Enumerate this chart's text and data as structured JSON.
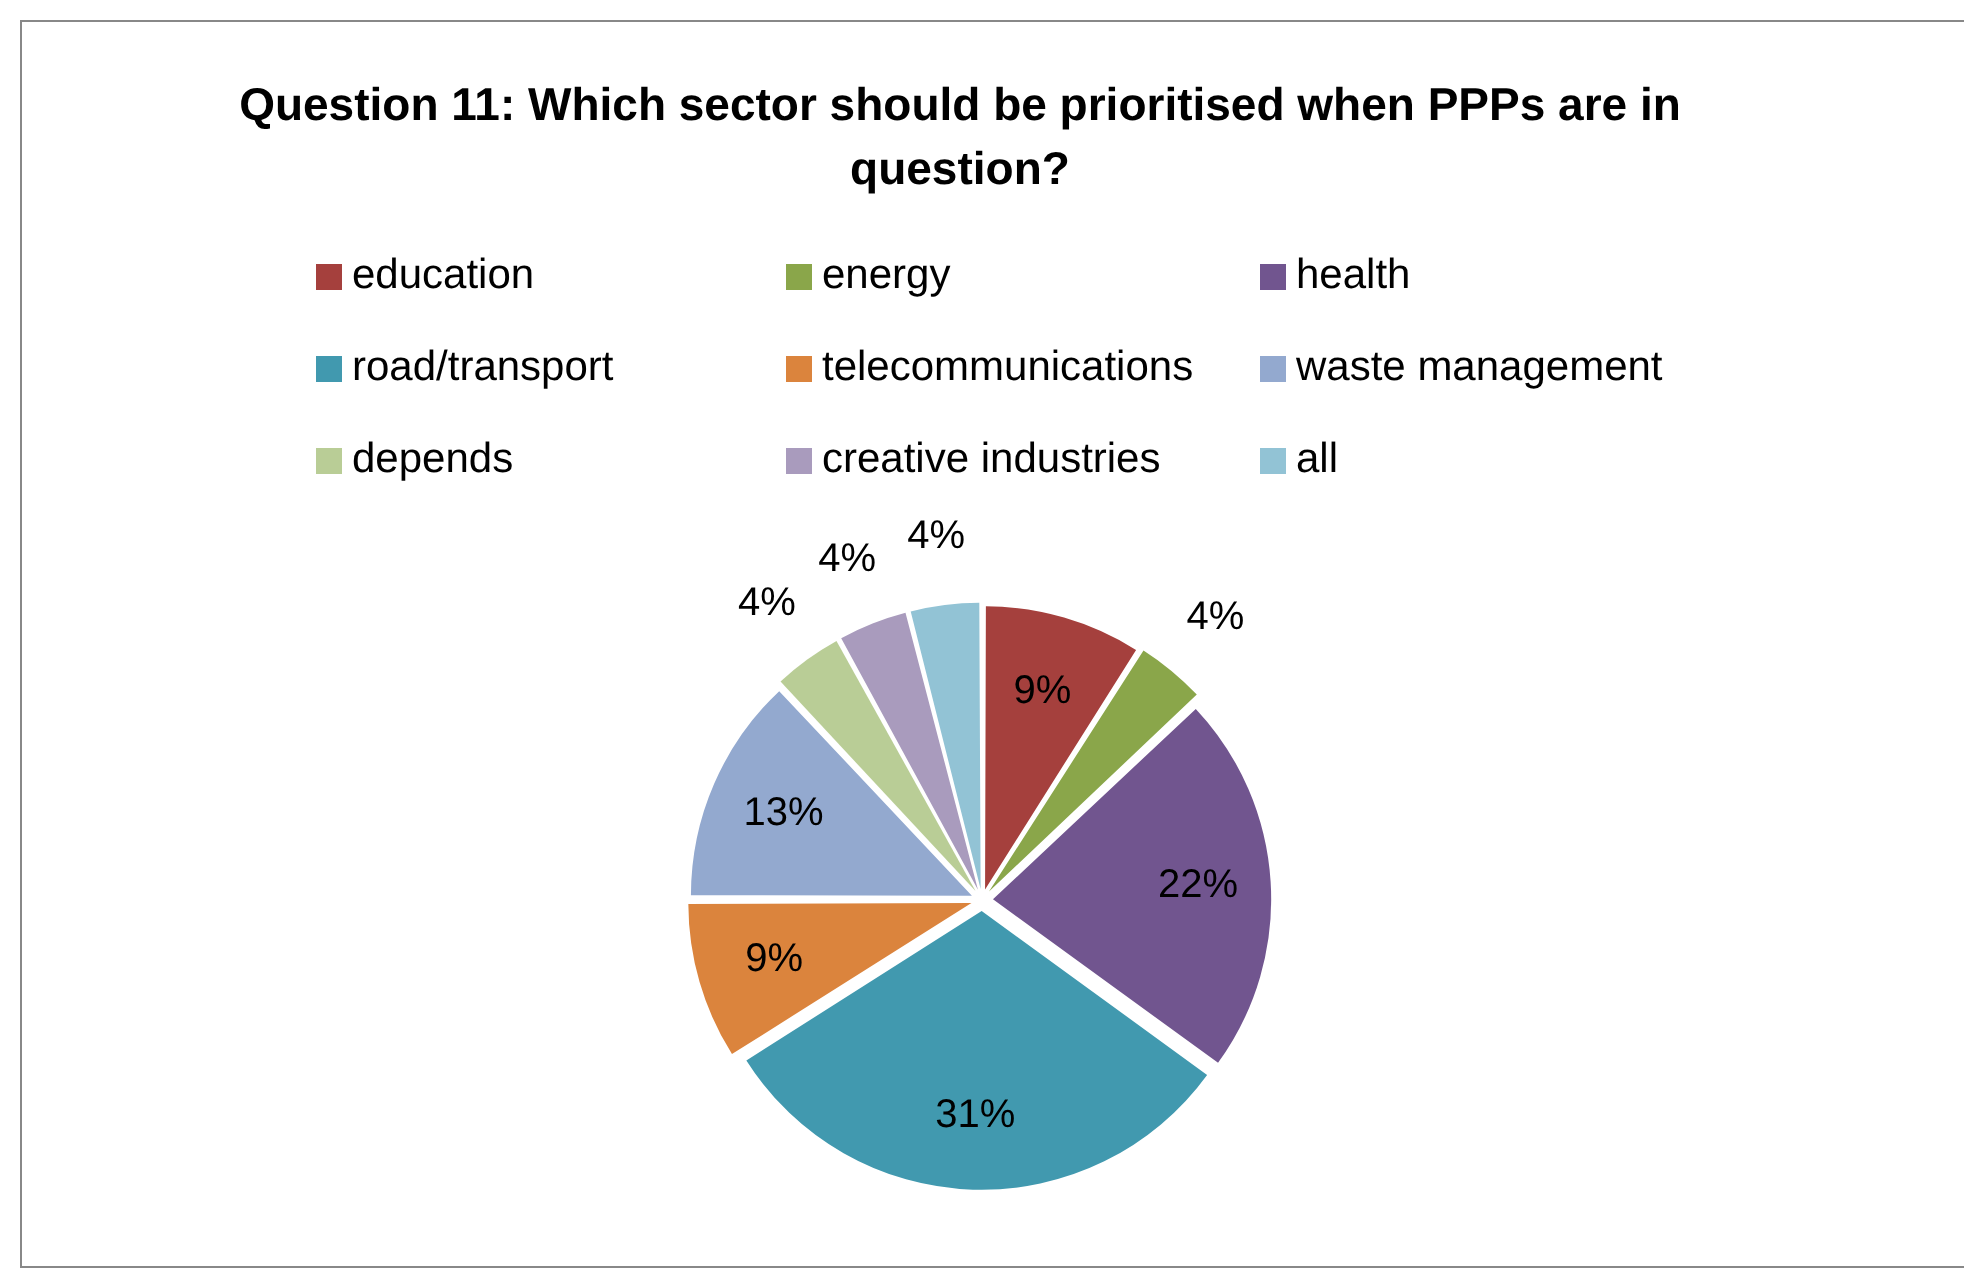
{
  "chart_data": {
    "type": "pie",
    "title": "Question 11: Which sector should be prioritised when PPPs are in question?",
    "categories": [
      "education",
      "energy",
      "health",
      "road/transport",
      "telecommunications",
      "waste management",
      "depends",
      "creative industries",
      "all"
    ],
    "values": [
      9,
      4,
      22,
      31,
      9,
      13,
      4,
      4,
      4
    ],
    "value_labels": [
      "9%",
      "4%",
      "22%",
      "31%",
      "9%",
      "13%",
      "4%",
      "4%",
      "4%"
    ],
    "colors": [
      "#a5403d",
      "#8aa64a",
      "#71558f",
      "#4199af",
      "#db843d",
      "#93a9cf",
      "#b9cd96",
      "#a99bbd",
      "#92c3d5"
    ],
    "legend": "top"
  }
}
